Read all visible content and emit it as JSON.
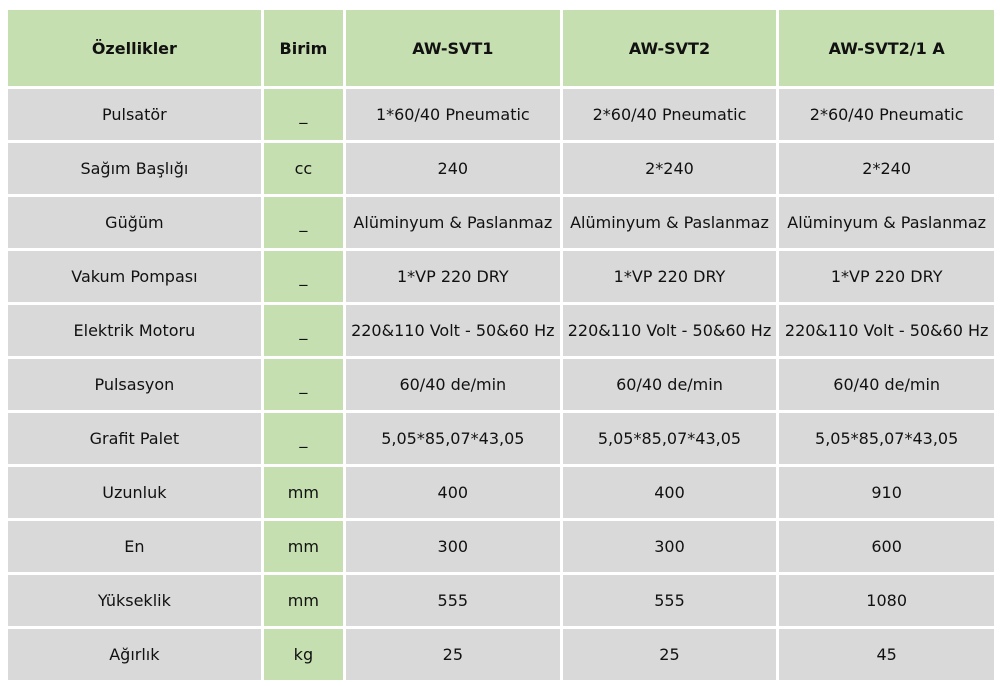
{
  "headers": [
    "Özellikler",
    "Birim",
    "AW-SVT1",
    "AW-SVT2",
    "AW-SVT2/1 A"
  ],
  "rows": [
    [
      "Pulsatör",
      "_",
      "1*60/40 Pneumatic",
      "2*60/40 Pneumatic",
      "2*60/40 Pneumatic"
    ],
    [
      "Sağım Başlığı",
      "cc",
      "240",
      "2*240",
      "2*240"
    ],
    [
      "Güğüm",
      "_",
      "Alüminyum & Paslanmaz",
      "Alüminyum & Paslanmaz",
      "Alüminyum & Paslanmaz"
    ],
    [
      "Vakum Pompası",
      "_",
      "1*VP 220 DRY",
      "1*VP 220 DRY",
      "1*VP 220 DRY"
    ],
    [
      "Elektrik Motoru",
      "_",
      "220&110 Volt - 50&60 Hz",
      "220&110 Volt - 50&60 Hz",
      "220&110 Volt - 50&60 Hz"
    ],
    [
      "Pulsasyon",
      "_",
      "60/40 de/min",
      "60/40 de/min",
      "60/40 de/min"
    ],
    [
      "Grafit Palet",
      "_",
      "5,05*85,07*43,05",
      "5,05*85,07*43,05",
      "5,05*85,07*43,05"
    ],
    [
      "Uzunluk",
      "mm",
      "400",
      "400",
      "910"
    ],
    [
      "En",
      "mm",
      "300",
      "300",
      "600"
    ],
    [
      "Yükseklik",
      "mm",
      "555",
      "555",
      "1080"
    ],
    [
      "Ağırlık",
      "kg",
      "25",
      "25",
      "45"
    ]
  ],
  "colors": {
    "header_bg": "#c6dfb1",
    "unit_bg": "#c6dfb1",
    "cell_bg": "#d9d9d9"
  }
}
